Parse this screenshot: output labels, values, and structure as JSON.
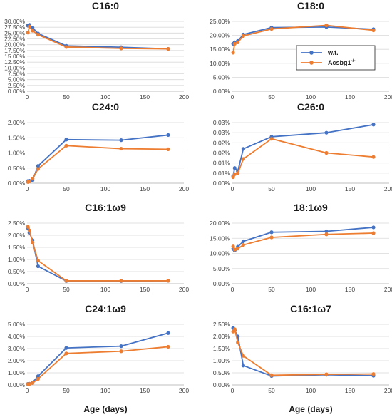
{
  "colors": {
    "wt": "#4472c4",
    "ko": "#ed7d31"
  },
  "xlabel": "Age (days)",
  "legend": {
    "items": [
      {
        "key": "wt",
        "label": "w.t."
      },
      {
        "key": "ko",
        "label": "Acsbg1",
        "superscript": "-/-"
      }
    ]
  },
  "chart_data": [
    {
      "title": "C16:0",
      "type": "line",
      "xlim": [
        0,
        200
      ],
      "xticks": [
        0,
        50,
        100,
        150,
        200
      ],
      "ylim": [
        0,
        30
      ],
      "yticks": [
        0,
        2.5,
        5,
        7.5,
        10,
        12.5,
        15,
        17.5,
        20,
        22.5,
        25,
        27.5,
        30
      ],
      "ytick_labels": [
        "0.00%",
        "2.50%",
        "5.00%",
        "7.50%",
        "10.00%",
        "12.50%",
        "15.00%",
        "17.50%",
        "20.00%",
        "22.50%",
        "25.00%",
        "27.50%",
        "30.00%"
      ],
      "series": [
        {
          "key": "wt",
          "x": [
            1,
            3,
            7,
            14,
            50,
            120,
            180
          ],
          "y": [
            28.2,
            28.5,
            27.3,
            24.8,
            19.5,
            18.9,
            18.2
          ]
        },
        {
          "key": "ko",
          "x": [
            1,
            3,
            7,
            14,
            50,
            120,
            180
          ],
          "y": [
            25.2,
            27.8,
            26.0,
            24.3,
            19.0,
            18.4,
            18.2
          ]
        }
      ]
    },
    {
      "title": "C18:0",
      "type": "line",
      "xlim": [
        0,
        200
      ],
      "xticks": [
        0,
        50,
        100,
        150,
        200
      ],
      "ylim": [
        0,
        25
      ],
      "yticks": [
        0,
        5,
        10,
        15,
        20,
        25
      ],
      "ytick_labels": [
        "0.00%",
        "5.00%",
        "10.00%",
        "15.00%",
        "20.00%",
        "25.00%"
      ],
      "legend": true,
      "series": [
        {
          "key": "wt",
          "x": [
            1,
            3,
            7,
            14,
            50,
            120,
            180
          ],
          "y": [
            17.0,
            17.5,
            18.0,
            20.3,
            22.8,
            23.0,
            22.2
          ]
        },
        {
          "key": "ko",
          "x": [
            1,
            3,
            7,
            14,
            50,
            120,
            180
          ],
          "y": [
            13.8,
            17.0,
            17.5,
            19.8,
            22.3,
            23.6,
            21.8
          ]
        }
      ]
    },
    {
      "title": "C24:0",
      "type": "line",
      "xlim": [
        0,
        200
      ],
      "xticks": [
        0,
        50,
        100,
        150,
        200
      ],
      "ylim": [
        0,
        2
      ],
      "yticks": [
        0,
        0.5,
        1.0,
        1.5,
        2.0
      ],
      "ytick_labels": [
        "0.00%",
        "0.50%",
        "1.00%",
        "1.50%",
        "2.00%"
      ],
      "series": [
        {
          "key": "wt",
          "x": [
            1,
            3,
            7,
            14,
            50,
            120,
            180
          ],
          "y": [
            0.07,
            0.08,
            0.1,
            0.57,
            1.44,
            1.42,
            1.59
          ]
        },
        {
          "key": "ko",
          "x": [
            1,
            3,
            7,
            14,
            50,
            120,
            180
          ],
          "y": [
            0.04,
            0.06,
            0.15,
            0.47,
            1.24,
            1.14,
            1.12
          ]
        }
      ]
    },
    {
      "title": "C26:0",
      "type": "line",
      "xlim": [
        0,
        200
      ],
      "xticks": [
        0,
        50,
        100,
        150,
        200
      ],
      "ylim": [
        0,
        0.03
      ],
      "yticks": [
        0,
        0.005,
        0.01,
        0.015,
        0.02,
        0.025,
        0.03
      ],
      "ytick_labels": [
        "0.00%",
        "0.01%",
        "0.01%",
        "0.02%",
        "0.02%",
        "0.03%",
        "0.03%"
      ],
      "series": [
        {
          "key": "wt",
          "x": [
            1,
            3,
            7,
            14,
            50,
            120,
            180
          ],
          "y": [
            0.0035,
            0.0075,
            0.006,
            0.017,
            0.023,
            0.025,
            0.029
          ]
        },
        {
          "key": "ko",
          "x": [
            1,
            3,
            7,
            14,
            50,
            120,
            180
          ],
          "y": [
            0.003,
            0.0045,
            0.005,
            0.012,
            0.022,
            0.015,
            0.013
          ]
        }
      ]
    },
    {
      "title": "C16:1ω9",
      "type": "line",
      "xlim": [
        0,
        200
      ],
      "xticks": [
        0,
        50,
        100,
        150,
        200
      ],
      "ylim": [
        0,
        2.5
      ],
      "yticks": [
        0,
        0.5,
        1.0,
        1.5,
        2.0,
        2.5
      ],
      "ytick_labels": [
        "0.00%",
        "0.50%",
        "1.00%",
        "1.50%",
        "2.00%",
        "2.50%"
      ],
      "series": [
        {
          "key": "wt",
          "x": [
            1,
            3,
            7,
            14,
            50,
            120,
            180
          ],
          "y": [
            2.3,
            2.1,
            1.8,
            0.72,
            0.11,
            0.11,
            0.12
          ]
        },
        {
          "key": "ko",
          "x": [
            1,
            3,
            7,
            14,
            50,
            120,
            180
          ],
          "y": [
            2.35,
            2.2,
            1.7,
            0.95,
            0.12,
            0.12,
            0.12
          ]
        }
      ]
    },
    {
      "title": "18:1ω9",
      "type": "line",
      "xlim": [
        0,
        200
      ],
      "xticks": [
        0,
        50,
        100,
        150,
        200
      ],
      "ylim": [
        0,
        20
      ],
      "yticks": [
        0,
        5,
        10,
        15,
        20
      ],
      "ytick_labels": [
        "0.00%",
        "5.00%",
        "10.00%",
        "15.00%",
        "20.00%"
      ],
      "series": [
        {
          "key": "wt",
          "x": [
            1,
            3,
            7,
            14,
            50,
            120,
            180
          ],
          "y": [
            11.5,
            11.0,
            12.2,
            14.0,
            17.0,
            17.3,
            18.6
          ]
        },
        {
          "key": "ko",
          "x": [
            1,
            3,
            7,
            14,
            50,
            120,
            180
          ],
          "y": [
            12.3,
            11.3,
            11.6,
            12.8,
            15.3,
            16.3,
            16.7
          ]
        }
      ]
    },
    {
      "title": "C24:1ω9",
      "type": "line",
      "xlim": [
        0,
        200
      ],
      "xticks": [
        0,
        50,
        100,
        150,
        200
      ],
      "ylim": [
        0,
        5
      ],
      "yticks": [
        0,
        1,
        2,
        3,
        4,
        5
      ],
      "ytick_labels": [
        "0.00%",
        "1.00%",
        "2.00%",
        "3.00%",
        "4.00%",
        "5.00%"
      ],
      "series": [
        {
          "key": "wt",
          "x": [
            1,
            3,
            7,
            14,
            50,
            120,
            180
          ],
          "y": [
            0.08,
            0.1,
            0.2,
            0.72,
            3.05,
            3.2,
            4.28
          ]
        },
        {
          "key": "ko",
          "x": [
            1,
            3,
            7,
            14,
            50,
            120,
            180
          ],
          "y": [
            0.06,
            0.08,
            0.15,
            0.5,
            2.6,
            2.78,
            3.15
          ]
        }
      ]
    },
    {
      "title": "C16:1ω7",
      "type": "line",
      "xlim": [
        0,
        200
      ],
      "xticks": [
        0,
        50,
        100,
        150,
        200
      ],
      "ylim": [
        0,
        2.5
      ],
      "yticks": [
        0,
        0.5,
        1.0,
        1.5,
        2.0,
        2.5
      ],
      "ytick_labels": [
        "0.00%",
        "0.50%",
        "1.00%",
        "1.50%",
        "2.00%",
        "2.50%"
      ],
      "series": [
        {
          "key": "wt",
          "x": [
            1,
            3,
            7,
            14,
            50,
            120,
            180
          ],
          "y": [
            2.35,
            2.25,
            2.0,
            0.8,
            0.37,
            0.42,
            0.38
          ]
        },
        {
          "key": "ko",
          "x": [
            1,
            3,
            7,
            14,
            50,
            120,
            180
          ],
          "y": [
            2.2,
            2.3,
            1.75,
            1.2,
            0.4,
            0.44,
            0.45
          ]
        }
      ]
    }
  ]
}
